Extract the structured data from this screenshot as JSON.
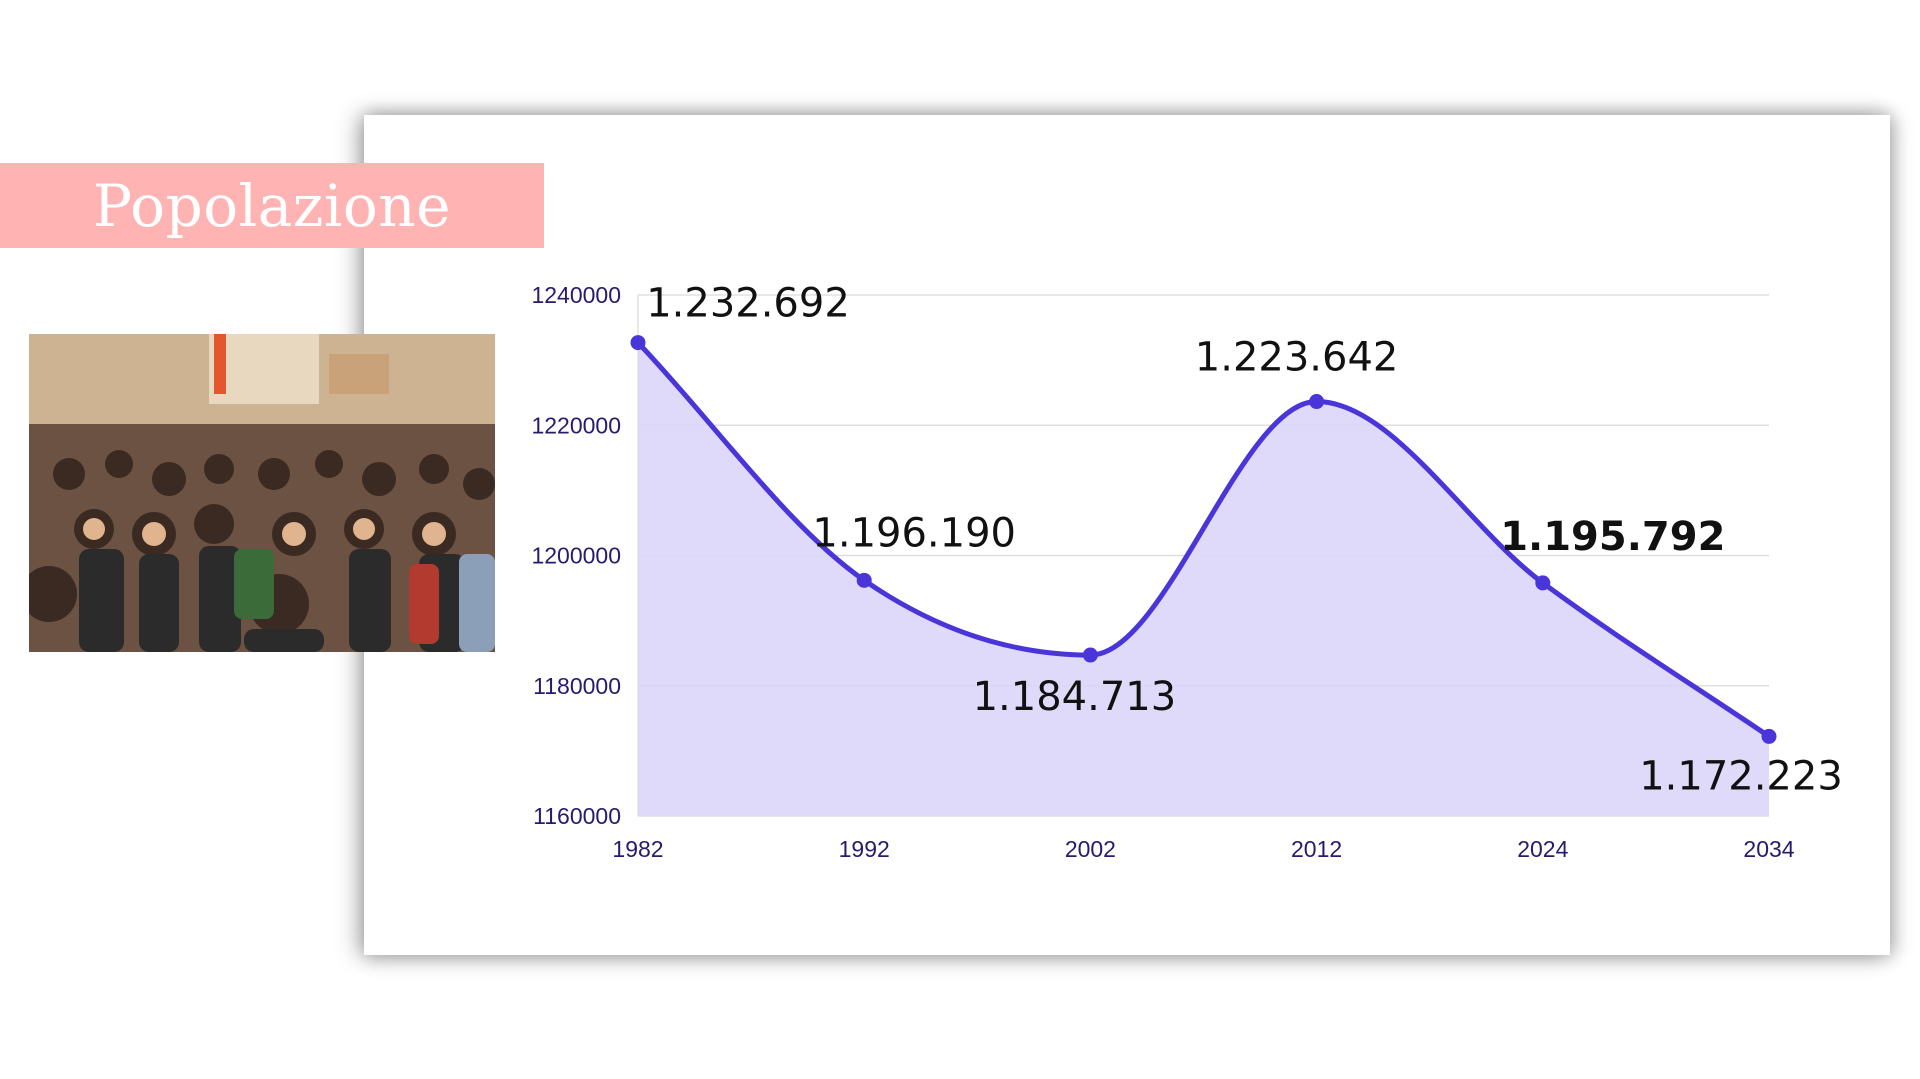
{
  "title": "Popolazione",
  "photo": {
    "description_icon": "crowd-photo-icon"
  },
  "colors": {
    "line": "#4a35d9",
    "area": "#dcd6f9",
    "grid": "#d9d9d9",
    "axis_text": "#2a1a6e",
    "banner": "#ffb3b3"
  },
  "chart_data": {
    "type": "area",
    "title": "",
    "xlabel": "",
    "ylabel": "",
    "categories": [
      "1982",
      "1992",
      "2002",
      "2012",
      "2024",
      "2034"
    ],
    "series": [
      {
        "values": [
          1232692,
          1196190,
          1184713,
          1223642,
          1195792,
          1172223
        ],
        "labels": [
          "1.232.692",
          "1.196.190",
          "1.184.713",
          "1.223.642",
          "1.195.792",
          "1.172.223"
        ],
        "bold_labels": [
          false,
          false,
          false,
          false,
          true,
          false
        ]
      }
    ],
    "ylim": [
      1160000,
      1240000
    ],
    "yticks": [
      "1160000",
      "1180000",
      "1200000",
      "1220000",
      "1240000"
    ],
    "grid": true,
    "curve": "smooth",
    "legend": "none"
  }
}
